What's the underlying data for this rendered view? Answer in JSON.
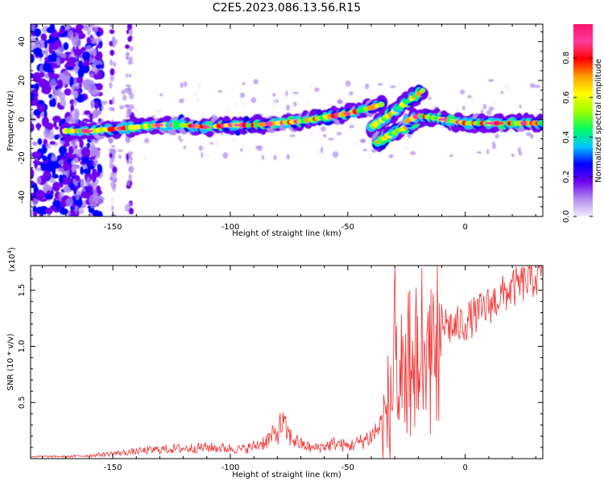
{
  "title": "C2E5.2023.086.13.56.R15",
  "chart_data": [
    {
      "type": "heatmap",
      "xlabel": "Height of straight line (km)",
      "ylabel": "Frequency (Hz)",
      "xlim": [
        -185,
        33
      ],
      "ylim": [
        -50,
        49
      ],
      "xticks": [
        -150,
        -100,
        -50,
        0
      ],
      "yticks": [
        -40,
        -20,
        0,
        20,
        40
      ],
      "grid": false,
      "colorbar": {
        "label": "Normalized spectral amplitude",
        "range": [
          0,
          0.97
        ],
        "ticks": [
          0.0,
          0.2,
          0.4,
          0.6,
          0.8
        ],
        "tick_labels": [
          "0.0",
          "0.2",
          "0.4",
          "0.6",
          "0.8"
        ],
        "colors": [
          "#f4ecfb",
          "#b08cf0",
          "#7000ee",
          "#0000ff",
          "#00c8ff",
          "#00ff60",
          "#9cff00",
          "#ffff00",
          "#ffa000",
          "#ff0000",
          "#ff3c9c",
          "#ff1070"
        ]
      },
      "main_ridge": {
        "x": [
          -170,
          -160,
          -150,
          -140,
          -130,
          -120,
          -110,
          -100,
          -90,
          -80,
          -70,
          -60,
          -50,
          -40,
          -35
        ],
        "y": [
          -6,
          -6,
          -5,
          -4,
          -3,
          -3,
          -4,
          -3,
          -3,
          -2,
          -1,
          1,
          3,
          6,
          8
        ]
      },
      "upper_branch": {
        "x": [
          -40,
          -35,
          -30,
          -25,
          -20,
          -18
        ],
        "y": [
          -4,
          0,
          4,
          9,
          13,
          15
        ]
      },
      "lower_branch": {
        "x": [
          -38,
          -32,
          -27,
          -22,
          -18
        ],
        "y": [
          -12,
          -8,
          -5,
          -2,
          1
        ]
      },
      "right_ridge": {
        "x": [
          -25,
          -20,
          -15,
          -10,
          0,
          10,
          20,
          33
        ],
        "y": [
          -1,
          2,
          1,
          0,
          -2,
          -2,
          -2,
          -2
        ]
      }
    },
    {
      "type": "line",
      "xlabel": "Height of straight line (km)",
      "ylabel": "SNR (10 * v/v)",
      "y_multiplier": "(x10",
      "y_multiplier_exp": "4",
      "y_multiplier_close": ")",
      "xlim": [
        -185,
        33
      ],
      "ylim": [
        0,
        1.72
      ],
      "xticks": [
        -150,
        -100,
        -50,
        0
      ],
      "yticks": [
        0.5,
        1.0,
        1.5
      ],
      "ytick_labels": [
        "0.5",
        "1.0",
        "1.5"
      ],
      "grid": false,
      "series": [
        {
          "color": "#f03030",
          "x": [
            -185,
            -170,
            -160,
            -155,
            -150,
            -140,
            -130,
            -120,
            -110,
            -100,
            -95,
            -90,
            -85,
            -80,
            -78,
            -75,
            -70,
            -65,
            -60,
            -55,
            -50,
            -45,
            -40,
            -35,
            -32,
            -30,
            -28,
            -25,
            -22,
            -20,
            -18,
            -15,
            -12,
            -10,
            -5,
            0,
            5,
            10,
            15,
            20,
            25,
            30,
            33
          ],
          "y": [
            0.02,
            0.02,
            0.03,
            0.04,
            0.05,
            0.07,
            0.09,
            0.1,
            0.11,
            0.1,
            0.09,
            0.12,
            0.17,
            0.25,
            0.35,
            0.22,
            0.14,
            0.1,
            0.12,
            0.15,
            0.12,
            0.16,
            0.22,
            0.35,
            0.6,
            1.3,
            0.85,
            1.0,
            1.25,
            1.05,
            1.45,
            1.2,
            1.35,
            1.25,
            1.2,
            1.25,
            1.32,
            1.4,
            1.48,
            1.55,
            1.6,
            1.65,
            1.68
          ]
        }
      ]
    }
  ]
}
